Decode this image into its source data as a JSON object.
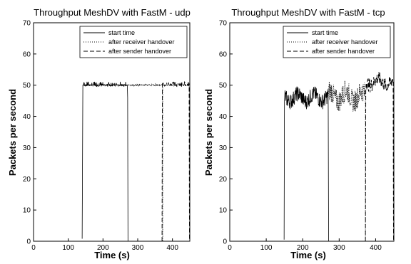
{
  "chart_data": [
    {
      "type": "line",
      "title": "Throughput MeshDV with FastM - udp",
      "xlabel": "Time (s)",
      "ylabel": "Packets per second",
      "xlim": [
        0,
        450
      ],
      "ylim": [
        0,
        70
      ],
      "xticks": [
        0,
        100,
        200,
        300,
        400
      ],
      "yticks": [
        0,
        10,
        20,
        30,
        40,
        50,
        60,
        70
      ],
      "grid": false,
      "legend_position": "top-right",
      "series": [
        {
          "name": "start time",
          "style": "solid",
          "kind": "udp",
          "start": 140,
          "end": 272,
          "base": 50.0,
          "noise": 0.8,
          "ramp": [
            [
              140,
              0.8
            ],
            [
              141,
              25
            ],
            [
              142,
              50
            ]
          ],
          "drop": [
            [
              270,
              50
            ],
            [
              271,
              46
            ],
            [
              272,
              0
            ]
          ]
        },
        {
          "name": "after receiver handover",
          "style": "dotted",
          "kind": "udp",
          "start": 270,
          "end": 372,
          "base": 50.0,
          "noise": 0.3,
          "ramp": [],
          "drop": [
            [
              372,
              50
            ],
            [
              372,
              0
            ]
          ]
        },
        {
          "name": "after sender handover",
          "style": "dashed",
          "kind": "udp",
          "start": 370,
          "end": 450,
          "base": 50.0,
          "noise": 0.8,
          "ramp": [
            [
              370,
              0
            ],
            [
              371,
              50
            ]
          ],
          "drop": [
            [
              448,
              50
            ],
            [
              449,
              0
            ]
          ]
        }
      ]
    },
    {
      "type": "line",
      "title": "Throughput MeshDV with FastM - tcp",
      "xlabel": "Time (s)",
      "ylabel": "Packets per second",
      "xlim": [
        0,
        450
      ],
      "ylim": [
        0,
        70
      ],
      "xticks": [
        0,
        100,
        200,
        300,
        400
      ],
      "yticks": [
        0,
        10,
        20,
        30,
        40,
        50,
        60,
        70
      ],
      "grid": false,
      "legend_position": "top-right",
      "series": [
        {
          "name": "start time",
          "style": "solid",
          "kind": "tcp",
          "start": 150,
          "end": 270,
          "base": 46.0,
          "noise": 2.5,
          "ramp": [
            [
              149,
              0.5
            ],
            [
              150,
              45
            ]
          ],
          "drop": [
            [
              270,
              42
            ],
            [
              271,
              0
            ]
          ]
        },
        {
          "name": "after receiver handover",
          "style": "dotted",
          "kind": "tcp",
          "start": 270,
          "end": 372,
          "base": 46.5,
          "noise": 3.5,
          "ramp": [],
          "drop": [
            [
              372,
              46
            ],
            [
              372,
              0
            ]
          ]
        },
        {
          "name": "after sender handover",
          "style": "dashed",
          "kind": "tcp",
          "start": 372,
          "end": 450,
          "base": 51.0,
          "noise": 2.2,
          "ramp": [
            [
              372,
              0
            ],
            [
              373,
              48
            ]
          ],
          "drop": [
            [
              448,
              51
            ],
            [
              449,
              0
            ]
          ]
        }
      ]
    }
  ]
}
